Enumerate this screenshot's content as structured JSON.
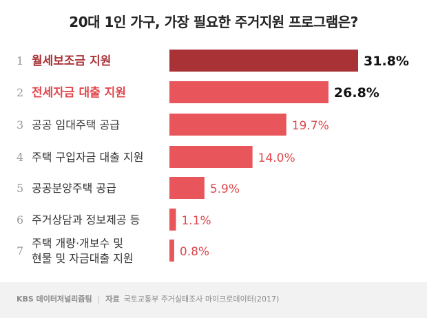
{
  "title": "20대 1인 가구, 가장 필요한 주거지원 프로그램은?",
  "chart_data": {
    "type": "bar",
    "orientation": "horizontal",
    "title": "20대 1인 가구, 가장 필요한 주거지원 프로그램은?",
    "ranks": [
      "1",
      "2",
      "3",
      "4",
      "5",
      "6",
      "7"
    ],
    "categories": [
      [
        "월세보조금 지원"
      ],
      [
        "전세자금 대출 지원"
      ],
      [
        "공공 임대주택 공급"
      ],
      [
        "주택 구입자금 대출 지원"
      ],
      [
        "공공분양주택 공급"
      ],
      [
        "주거상담과 정보제공 등"
      ],
      [
        "주택 개량·개보수 및",
        "현물 및 자금대출 지원"
      ]
    ],
    "values": [
      31.8,
      26.8,
      19.7,
      14.0,
      5.9,
      1.1,
      0.8
    ],
    "value_labels": [
      "31.8%",
      "26.8%",
      "19.7%",
      "14.0%",
      "5.9%",
      "1.1%",
      "0.8%"
    ],
    "value_unit": "%",
    "xlim": [
      0,
      31.8
    ],
    "highlight": [
      true,
      true,
      false,
      false,
      false,
      false,
      false
    ],
    "grid": false,
    "legend": "none",
    "colors": {
      "top_bar": "#a83236",
      "bar": "#e8555a",
      "top_label": "#a83236",
      "label": "#333333",
      "rank": "#999999",
      "value": "#e0474c",
      "top_value": "#111111"
    }
  },
  "footer": {
    "brand": "KBS 데이터저널리즘팀",
    "separator": "|",
    "source_label": "자료",
    "source": "국토교통부 주거실태조사 마이크로데이터(2017)"
  }
}
